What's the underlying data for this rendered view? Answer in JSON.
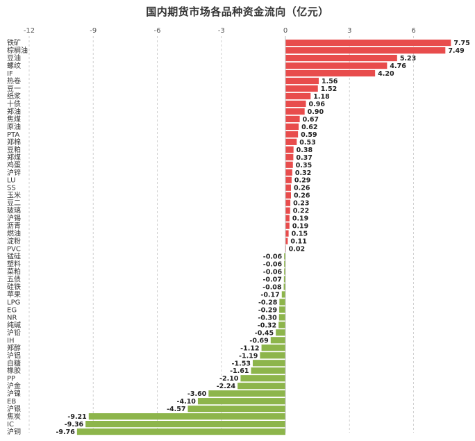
{
  "chart_data": {
    "type": "bar",
    "orientation": "horizontal",
    "title": "国内期货市场各品种资金流向（亿元）",
    "xlim": [
      -12,
      9
    ],
    "xticks": [
      -12,
      -9,
      -6,
      -3,
      0,
      3,
      6
    ],
    "grid": "vertical dashed",
    "colors": {
      "positive": "#e84c4c",
      "negative": "#8db54b"
    },
    "categories": [
      "铁矿",
      "棕榈油",
      "豆油",
      "螺纹",
      "IF",
      "热卷",
      "豆一",
      "纸浆",
      "十债",
      "郑油",
      "焦煤",
      "原油",
      "PTA",
      "郑棉",
      "豆粕",
      "郑煤",
      "鸡蛋",
      "沪锌",
      "LU",
      "SS",
      "玉米",
      "豆二",
      "玻璃",
      "沪锡",
      "沥青",
      "燃油",
      "淀粉",
      "PVC",
      "锰硅",
      "塑料",
      "菜粕",
      "五债",
      "硅铁",
      "苹果",
      "LPG",
      "EG",
      "NR",
      "纯碱",
      "沪铅",
      "IH",
      "郑醇",
      "沪铝",
      "白糖",
      "橡胶",
      "PP",
      "沪金",
      "沪镍",
      "EB",
      "沪银",
      "焦炭",
      "IC",
      "沪铜"
    ],
    "values": [
      7.75,
      7.49,
      5.23,
      4.76,
      4.2,
      1.56,
      1.52,
      1.18,
      0.96,
      0.9,
      0.67,
      0.62,
      0.59,
      0.53,
      0.38,
      0.37,
      0.35,
      0.32,
      0.29,
      0.26,
      0.26,
      0.23,
      0.22,
      0.19,
      0.19,
      0.15,
      0.11,
      0.02,
      -0.06,
      -0.06,
      -0.06,
      -0.07,
      -0.08,
      -0.17,
      -0.28,
      -0.29,
      -0.3,
      -0.32,
      -0.45,
      -0.69,
      -1.12,
      -1.19,
      -1.53,
      -1.61,
      -2.1,
      -2.24,
      -3.6,
      -4.1,
      -4.57,
      -9.21,
      -9.36,
      -9.76
    ],
    "value_labels": [
      "7.75",
      "7.49",
      "5.23",
      "4.76",
      "4.20",
      "1.56",
      "1.52",
      "1.18",
      "0.96",
      "0.90",
      "0.67",
      "0.62",
      "0.59",
      "0.53",
      "0.38",
      "0.37",
      "0.35",
      "0.32",
      "0.29",
      "0.26",
      "0.26",
      "0.23",
      "0.22",
      "0.19",
      "0.19",
      "0.15",
      "0.11",
      "0.02",
      "-0.06",
      "-0.06",
      "-0.06",
      "-0.07",
      "-0.08",
      "-0.17",
      "-0.28",
      "-0.29",
      "-0.30",
      "-0.32",
      "-0.45",
      "-0.69",
      "-1.12",
      "-1.19",
      "-1.53",
      "-1.61",
      "-2.10",
      "-2.24",
      "-3.60",
      "-4.10",
      "-4.57",
      "-9.21",
      "-9.36",
      "-9.76"
    ]
  }
}
